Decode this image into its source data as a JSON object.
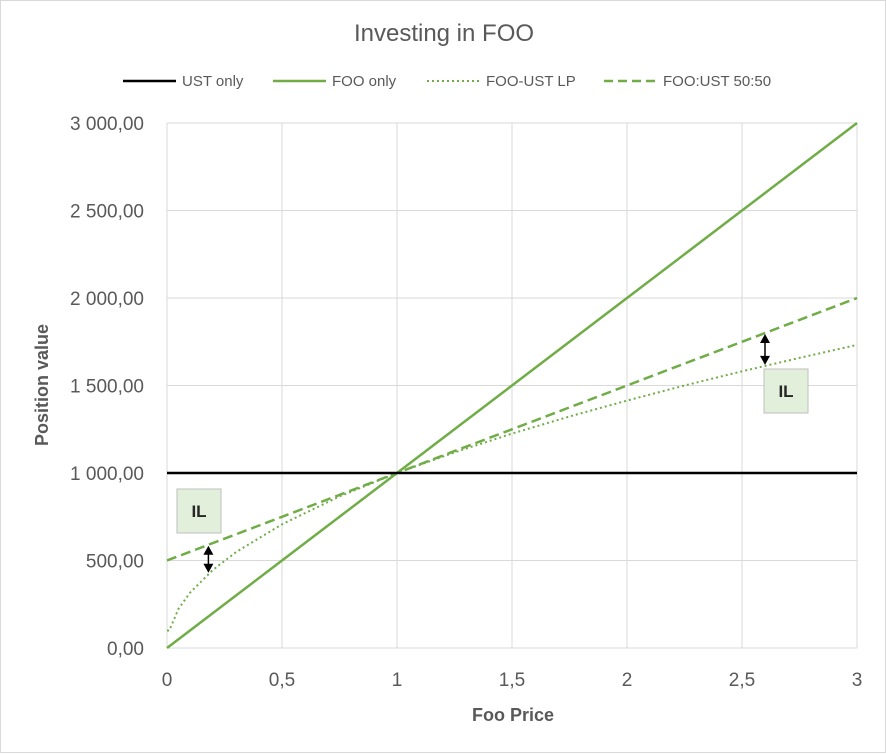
{
  "chart_data": {
    "type": "line",
    "title": "Investing in FOO",
    "xlabel": "Foo Price",
    "ylabel": "Position value",
    "xlim": [
      0,
      3
    ],
    "ylim": [
      0,
      3000
    ],
    "grid": true,
    "legend_position": "top",
    "x_ticks": [
      "0",
      "0,5",
      "1",
      "1,5",
      "2",
      "2,5",
      "3"
    ],
    "y_ticks": [
      "0,00",
      "500,00",
      "1 000,00",
      "1 500,00",
      "2 000,00",
      "2 500,00",
      "3 000,00"
    ],
    "x": [
      0,
      0.01,
      0.05,
      0.1,
      0.2,
      0.3,
      0.5,
      0.75,
      1,
      1.25,
      1.5,
      1.75,
      2,
      2.25,
      2.5,
      2.75,
      3
    ],
    "series": [
      {
        "name": "UST only",
        "color": "#000000",
        "style": "solid",
        "values": [
          1000,
          1000,
          1000,
          1000,
          1000,
          1000,
          1000,
          1000,
          1000,
          1000,
          1000,
          1000,
          1000,
          1000,
          1000,
          1000,
          1000
        ]
      },
      {
        "name": "FOO only",
        "color": "#70ad47",
        "style": "solid",
        "values": [
          0,
          10,
          50,
          100,
          200,
          300,
          500,
          750,
          1000,
          1250,
          1500,
          1750,
          2000,
          2250,
          2500,
          2750,
          3000
        ]
      },
      {
        "name": "FOO-UST LP",
        "color": "#70ad47",
        "style": "dotted",
        "values": [
          100,
          100,
          224,
          316,
          447,
          548,
          707,
          866,
          1000,
          1118,
          1225,
          1323,
          1414,
          1500,
          1581,
          1658,
          1732
        ]
      },
      {
        "name": "FOO:UST 50:50",
        "color": "#70ad47",
        "style": "dashed",
        "values": [
          500,
          505,
          525,
          550,
          600,
          650,
          750,
          875,
          1000,
          1125,
          1250,
          1375,
          1500,
          1625,
          1750,
          1875,
          2000
        ]
      }
    ],
    "annotations": [
      {
        "label": "IL",
        "x": 0.18,
        "y_top": 590,
        "y_bottom": 424
      },
      {
        "label": "IL",
        "x": 2.6,
        "y_top": 1800,
        "y_bottom": 1612
      }
    ]
  }
}
